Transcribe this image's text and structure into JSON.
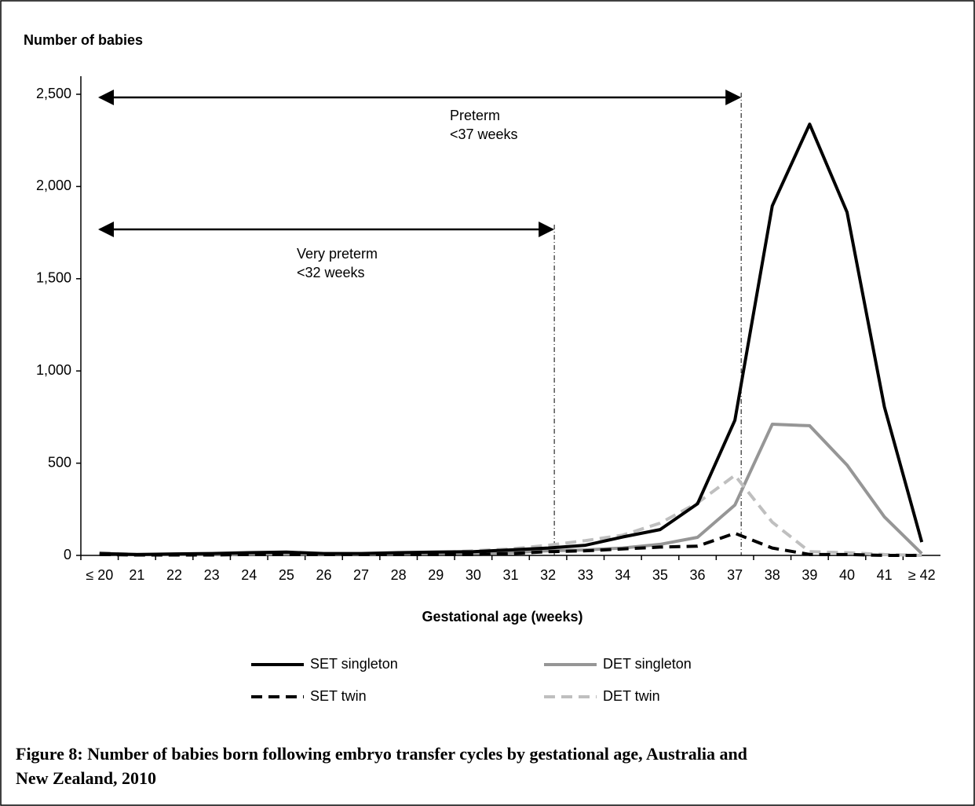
{
  "chart_data": {
    "type": "line",
    "title": "Number of babies",
    "x_label": "Gestational age (weeks)",
    "caption": [
      "Figure 8: Number of babies born following embryo transfer cycles by gestational age, Australia and",
      "New Zealand, 2010"
    ],
    "categories": [
      "≤ 20",
      "21",
      "22",
      "23",
      "24",
      "25",
      "26",
      "27",
      "28",
      "29",
      "30",
      "31",
      "32",
      "33",
      "34",
      "35",
      "36",
      "37",
      "38",
      "39",
      "40",
      "41",
      "≥ 42"
    ],
    "series": [
      {
        "name": "SET singleton",
        "color": "#000000",
        "dash": false,
        "values": [
          10,
          5,
          8,
          10,
          15,
          18,
          10,
          10,
          15,
          18,
          20,
          30,
          40,
          55,
          100,
          140,
          280,
          733,
          1895,
          2338,
          1861,
          805,
          72
        ]
      },
      {
        "name": "DET singleton",
        "color": "#969696",
        "dash": false,
        "values": [
          10,
          5,
          5,
          5,
          8,
          8,
          8,
          8,
          10,
          10,
          12,
          15,
          25,
          30,
          40,
          60,
          98,
          273,
          711,
          703,
          490,
          209,
          10
        ]
      },
      {
        "name": "SET twin",
        "color": "#000000",
        "dash": true,
        "values": [
          5,
          2,
          2,
          2,
          5,
          5,
          5,
          5,
          5,
          5,
          5,
          10,
          20,
          25,
          35,
          45,
          50,
          120,
          40,
          5,
          5,
          0,
          0
        ]
      },
      {
        "name": "DET twin",
        "color": "#bfbfbf",
        "dash": true,
        "values": [
          15,
          5,
          5,
          5,
          8,
          8,
          8,
          8,
          10,
          15,
          25,
          35,
          55,
          80,
          110,
          175,
          285,
          434,
          180,
          20,
          15,
          5,
          0
        ]
      }
    ],
    "annotations": [
      {
        "lines": [
          "Preterm",
          "<37 weeks"
        ]
      },
      {
        "lines": [
          "Very preterm",
          "<32 weeks"
        ]
      }
    ],
    "ylim": [
      0,
      2500
    ],
    "yticks": [
      0,
      500,
      {
        "value": 1000,
        "label": "1,000"
      },
      {
        "value": 1500,
        "label": "1,500"
      },
      {
        "value": 2000,
        "label": "2,000"
      },
      {
        "value": 2500,
        "label": "2,500"
      }
    ],
    "grid": false
  }
}
